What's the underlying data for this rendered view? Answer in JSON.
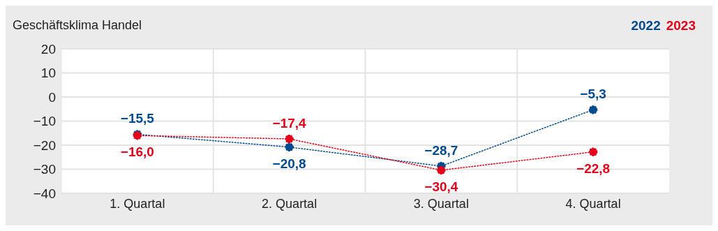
{
  "chart_data": {
    "type": "line",
    "title": "Geschäftsklima Handel",
    "categories": [
      "1. Quartal",
      "2. Quartal",
      "3. Quartal",
      "4. Quartal"
    ],
    "series": [
      {
        "name": "2022",
        "color": "#004a8f",
        "values": [
          -15.5,
          -20.8,
          -28.7,
          -5.3
        ],
        "value_labels": [
          "−15,5",
          "−20,8",
          "−28,7",
          "−5,3"
        ]
      },
      {
        "name": "2023",
        "color": "#e2001a",
        "values": [
          -16.0,
          -17.4,
          -30.4,
          -22.8
        ],
        "value_labels": [
          "−16,0",
          "−17,4",
          "−30,4",
          "−22,8"
        ]
      }
    ],
    "ylim": [
      -40,
      20
    ],
    "yticks": [
      20,
      10,
      {
        "value": 0,
        "label": "0"
      },
      {
        "value": -10,
        "label": "−10"
      },
      {
        "value": -20,
        "label": "−20"
      },
      {
        "value": -30,
        "label": "−30"
      },
      {
        "value": -40,
        "label": "−40"
      }
    ],
    "grid": true,
    "legend": "top right",
    "marker": "circle",
    "line_style": "dotted"
  }
}
